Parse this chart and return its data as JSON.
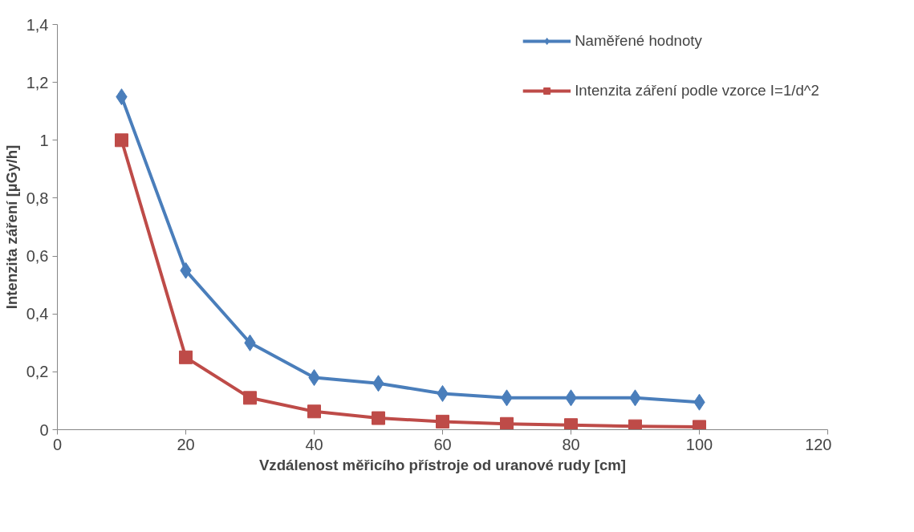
{
  "chart_data": {
    "type": "line",
    "xlabel": "Vzdálenost měřicího přístroje od uranové rudy [cm]",
    "ylabel": "Intenzita záření [µGy/h]",
    "x": [
      10,
      20,
      30,
      40,
      50,
      60,
      70,
      80,
      90,
      100
    ],
    "series": [
      {
        "name": "Naměřené hodnoty",
        "color": "#4a7ebb",
        "marker": "diamond",
        "values": [
          1.15,
          0.55,
          0.3,
          0.18,
          0.16,
          0.125,
          0.11,
          0.11,
          0.11,
          0.095
        ]
      },
      {
        "name": "Intenzita záření podle vzorce I=1/d^2",
        "color": "#be4b48",
        "marker": "square",
        "values": [
          1,
          0.25,
          0.11,
          0.063,
          0.04,
          0.028,
          0.02,
          0.016,
          0.012,
          0.01
        ]
      }
    ],
    "xlim": [
      0,
      120
    ],
    "xticks": [
      0,
      20,
      40,
      60,
      80,
      100,
      120
    ],
    "ylim": [
      0,
      1.4
    ],
    "yticks": [
      0,
      {
        "value": 0.2,
        "label": "0,2"
      },
      {
        "value": 0.4,
        "label": "0,4"
      },
      {
        "value": 0.6,
        "label": "0,6"
      },
      {
        "value": 0.8,
        "label": "0,8"
      },
      1,
      {
        "value": 1.2,
        "label": "1,2"
      },
      {
        "value": 1.4,
        "label": "1,4"
      }
    ],
    "grid": false,
    "legend": "top right",
    "line_style": "solid"
  }
}
